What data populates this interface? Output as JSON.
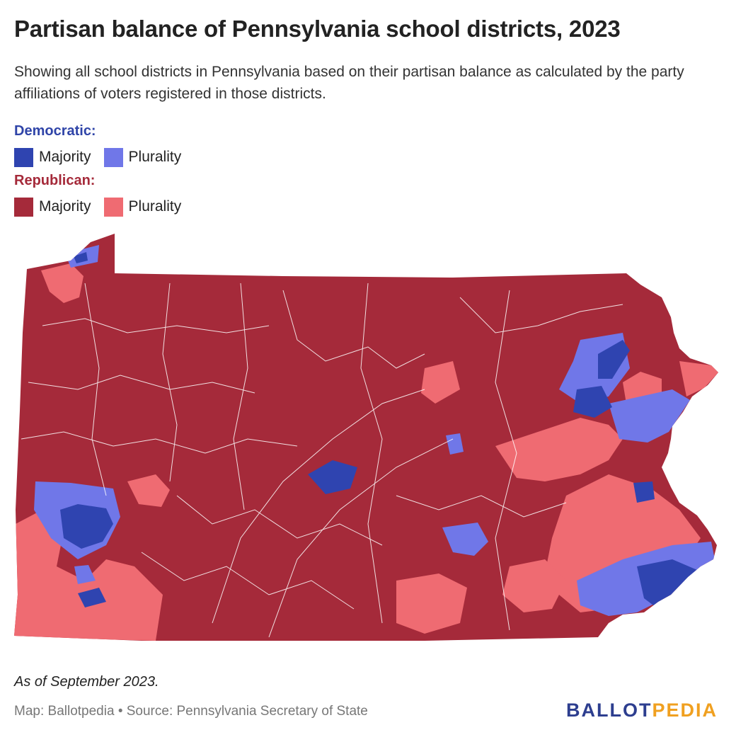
{
  "title": "Partisan balance of Pennsylvania school districts, 2023",
  "subtitle": "Showing all school districts in Pennsylvania based on their partisan balance as calculated by the party affiliations of voters registered in those districts.",
  "legend": {
    "democratic": {
      "heading": "Democratic:",
      "heading_color": "#2f44a8",
      "majority_label": "Majority",
      "plurality_label": "Plurality",
      "majority_color": "#2f44b0",
      "plurality_color": "#7077e8"
    },
    "republican": {
      "heading": "Republican:",
      "heading_color": "#a52a3a",
      "majority_label": "Majority",
      "plurality_label": "Plurality",
      "majority_color": "#a52a3a",
      "plurality_color": "#ef6b72"
    }
  },
  "note": "As of September 2023.",
  "footer": "Map: Ballotpedia • Source: Pennsylvania Secretary of State",
  "logo": {
    "part1": "BALLOT",
    "part2": "PEDIA"
  }
}
